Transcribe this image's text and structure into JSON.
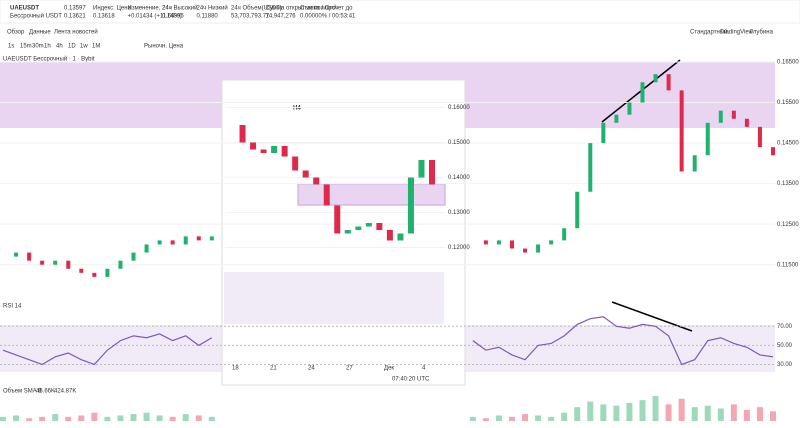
{
  "header": {
    "symbol": "UAEUSDT",
    "subtitle": "Бессрочный USDT",
    "last": "0.13597",
    "mark": "0.13621",
    "stats": [
      [
        "Индекс. Цена",
        "0.13618"
      ],
      [
        "Изменение, 24ч",
        "+0.01434 (+11.69%)"
      ],
      [
        "24ч Высокий",
        "0.14395"
      ],
      [
        "24ч Низкий",
        "0.11880"
      ],
      [
        "24ч Объем(USDT)",
        "53,703,793.77"
      ],
      [
        "Сумма открытых позиций",
        "14,947,276"
      ],
      [
        "Ставка / Отсчет до",
        "0.00000% / 00:53:41"
      ]
    ]
  },
  "tabs": [
    "Обзор",
    "Данные",
    "Лента новостей"
  ],
  "views": [
    "Стандартный",
    "TradingView",
    "Глубина"
  ],
  "toolbar": [
    "1s",
    "15m",
    "30m",
    "1h",
    "4h",
    "1D",
    "1w",
    "1M",
    "Рыночн. Цена"
  ],
  "legend": {
    "main": "UAEUSDT Бессрочный · 1 · Bybit",
    "rsi": "RSI 14",
    "volume": "Объем SMA 9",
    "vol_a": "45.66K",
    "vol_b": "424.87K"
  },
  "chart": {
    "ylim": [
      0.11,
      0.165
    ],
    "yticks": [
      {
        "value": 0.165,
        "label": "0.16500"
      },
      {
        "value": 0.155,
        "label": "0.15500"
      },
      {
        "value": 0.145,
        "label": "0.14500"
      },
      {
        "value": 0.135,
        "label": "0.13500"
      },
      {
        "value": 0.125,
        "label": "0.12500"
      },
      {
        "value": 0.115,
        "label": "0.11500"
      }
    ],
    "price": [
      0.117,
      0.118,
      0.116,
      0.115,
      0.116,
      0.114,
      0.113,
      0.112,
      0.114,
      0.116,
      0.118,
      0.12,
      0.121,
      0.12,
      0.122,
      0.121,
      0.122,
      null,
      null,
      null,
      null,
      null,
      null,
      null,
      null,
      null,
      null,
      null,
      null,
      null,
      null,
      null,
      null,
      null,
      null,
      null,
      0.121,
      0.12,
      0.121,
      0.119,
      0.118,
      0.12,
      0.121,
      0.124,
      0.133,
      0.145,
      0.15,
      0.152,
      0.155,
      0.16,
      0.162,
      0.158,
      0.138,
      0.142,
      0.15,
      0.153,
      0.151,
      0.149,
      0.144,
      0.142
    ],
    "rsi_ylim": [
      20,
      85
    ],
    "rsi_yticks": [
      {
        "value": 70,
        "label": "70.00"
      },
      {
        "value": 50,
        "label": "50.00"
      },
      {
        "value": 30,
        "label": "30.00"
      }
    ],
    "rsi": [
      45,
      40,
      35,
      30,
      38,
      42,
      35,
      30,
      45,
      55,
      60,
      58,
      62,
      55,
      60,
      50,
      58,
      null,
      null,
      null,
      null,
      null,
      null,
      null,
      null,
      null,
      null,
      null,
      null,
      null,
      null,
      null,
      null,
      null,
      null,
      null,
      55,
      45,
      48,
      40,
      35,
      50,
      52,
      60,
      72,
      78,
      80,
      70,
      68,
      72,
      70,
      60,
      30,
      35,
      55,
      58,
      52,
      48,
      40,
      38
    ],
    "volume": [
      3,
      4,
      2,
      3,
      5,
      3,
      4,
      6,
      3,
      4,
      5,
      6,
      4,
      3,
      5,
      4,
      3,
      null,
      null,
      null,
      null,
      null,
      null,
      null,
      null,
      null,
      null,
      null,
      null,
      null,
      null,
      null,
      null,
      null,
      null,
      null,
      3,
      2,
      4,
      3,
      5,
      4,
      3,
      6,
      10,
      14,
      12,
      11,
      13,
      15,
      18,
      12,
      16,
      10,
      11,
      9,
      12,
      8,
      10,
      7
    ]
  },
  "inset": {
    "title": "H4",
    "ylim": [
      0.115,
      0.165
    ],
    "yticks": [
      {
        "value": 0.16,
        "label": "0.16000"
      },
      {
        "value": 0.15,
        "label": "0.15000"
      },
      {
        "value": 0.14,
        "label": "0.14000"
      },
      {
        "value": 0.13,
        "label": "0.13000"
      },
      {
        "value": 0.12,
        "label": "0.12000"
      }
    ],
    "price": [
      0.155,
      0.15,
      0.148,
      0.147,
      0.149,
      0.146,
      0.142,
      0.14,
      0.138,
      0.132,
      0.124,
      0.125,
      0.126,
      0.127,
      0.125,
      0.122,
      0.124,
      0.14,
      0.145,
      0.138
    ],
    "xlabels": [
      "18",
      "21",
      "24",
      "27",
      "Дек",
      "4"
    ],
    "time": "07:40:20 UTC"
  }
}
